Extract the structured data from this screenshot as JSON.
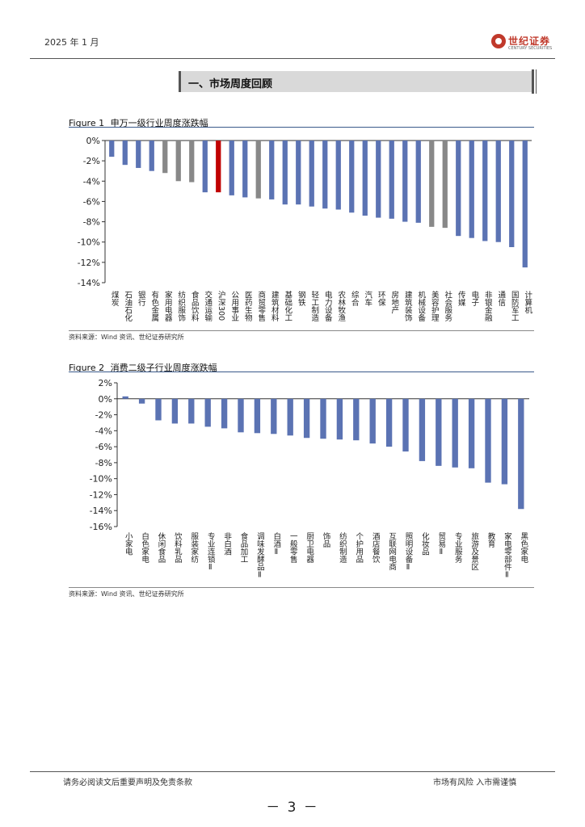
{
  "header": {
    "date": "2025 年 1 月",
    "logo_cn": "世纪证券",
    "logo_en": "CENTURY SECURITIES"
  },
  "section": {
    "title": "一、市场周度回顾"
  },
  "figure1": {
    "label": "Figure 1",
    "caption": "申万一级行业周度涨跌幅",
    "source": "资料来源：Wind 资讯、世纪证券研究所"
  },
  "figure2": {
    "label": "Figure 2",
    "caption": "消费二级子行业周度涨跌幅",
    "source": "资料来源：Wind 资讯、世纪证券研究所"
  },
  "footer": {
    "left": "请务必阅读文后重要声明及免责条款",
    "right": "市场有风险 入市需谨慎",
    "page": "－ 3 －"
  },
  "colors": {
    "blue": "#5b73b3",
    "gray": "#888888",
    "red": "#c00000"
  },
  "chart_data": [
    {
      "type": "bar",
      "categories": [
        "煤炭",
        "石油石化",
        "银行",
        "有色金属",
        "家用电器",
        "纺织服饰",
        "食品饮料",
        "交通运输",
        "沪深300",
        "公用事业",
        "医药生物",
        "商贸零售",
        "建筑材料",
        "基础化工",
        "钢铁",
        "轻工制造",
        "电力设备",
        "农林牧渔",
        "综合",
        "汽车",
        "环保",
        "房地产",
        "建筑装饰",
        "机械设备",
        "美容护理",
        "社会服务",
        "传媒",
        "电子",
        "非银金融",
        "通信",
        "国防军工",
        "计算机"
      ],
      "values": [
        -1.6,
        -2.4,
        -2.7,
        -3.0,
        -3.2,
        -4.0,
        -4.1,
        -5.1,
        -5.1,
        -5.4,
        -5.6,
        -5.7,
        -5.8,
        -6.3,
        -6.3,
        -6.5,
        -6.7,
        -6.8,
        -7.1,
        -7.4,
        -7.6,
        -7.7,
        -8.0,
        -8.1,
        -8.5,
        -8.6,
        -9.4,
        -9.6,
        -9.9,
        -10.0,
        -10.5,
        -12.5
      ],
      "bar_colors": [
        "blue",
        "blue",
        "blue",
        "blue",
        "gray",
        "gray",
        "gray",
        "blue",
        "red",
        "blue",
        "blue",
        "gray",
        "blue",
        "blue",
        "blue",
        "blue",
        "blue",
        "blue",
        "blue",
        "blue",
        "blue",
        "blue",
        "blue",
        "blue",
        "gray",
        "gray",
        "blue",
        "blue",
        "blue",
        "blue",
        "blue",
        "blue"
      ],
      "y_ticks": [
        "0%",
        "-2%",
        "-4%",
        "-6%",
        "-8%",
        "-10%",
        "-12%",
        "-14%"
      ],
      "ylim": [
        -14,
        0
      ],
      "title": "",
      "xlabel": "",
      "ylabel": "",
      "grid": false,
      "legend": "none"
    },
    {
      "type": "bar",
      "categories": [
        "小家电",
        "白色家电",
        "休闲食品",
        "饮料乳品",
        "服装家纺",
        "专业连锁Ⅱ",
        "非白酒",
        "食品加工",
        "调味发酵品Ⅱ",
        "白酒Ⅱ",
        "一般零售",
        "厨卫电器",
        "饰品",
        "纺织制造",
        "个护用品",
        "酒店餐饮",
        "互联网电商",
        "照明设备Ⅱ",
        "化妆品",
        "贸易Ⅱ",
        "专业服务",
        "旅游及景区",
        "教育",
        "家电零部件Ⅱ",
        "黑色家电"
      ],
      "values": [
        0.3,
        -0.6,
        -2.7,
        -3.1,
        -3.1,
        -3.5,
        -3.7,
        -4.2,
        -4.3,
        -4.4,
        -4.6,
        -4.9,
        -5.0,
        -5.1,
        -5.2,
        -5.6,
        -6.0,
        -6.6,
        -7.8,
        -8.4,
        -8.6,
        -8.7,
        -10.5,
        -10.7,
        -13.8
      ],
      "bar_colors": [
        "blue",
        "blue",
        "blue",
        "blue",
        "blue",
        "blue",
        "blue",
        "blue",
        "blue",
        "blue",
        "blue",
        "blue",
        "blue",
        "blue",
        "blue",
        "blue",
        "blue",
        "blue",
        "blue",
        "blue",
        "blue",
        "blue",
        "blue",
        "blue",
        "blue"
      ],
      "y_ticks": [
        "2%",
        "0%",
        "-2%",
        "-4%",
        "-6%",
        "-8%",
        "-10%",
        "-12%",
        "-14%",
        "-16%"
      ],
      "ylim": [
        -16,
        2
      ],
      "title": "",
      "xlabel": "",
      "ylabel": "",
      "grid": false,
      "legend": "none"
    }
  ]
}
